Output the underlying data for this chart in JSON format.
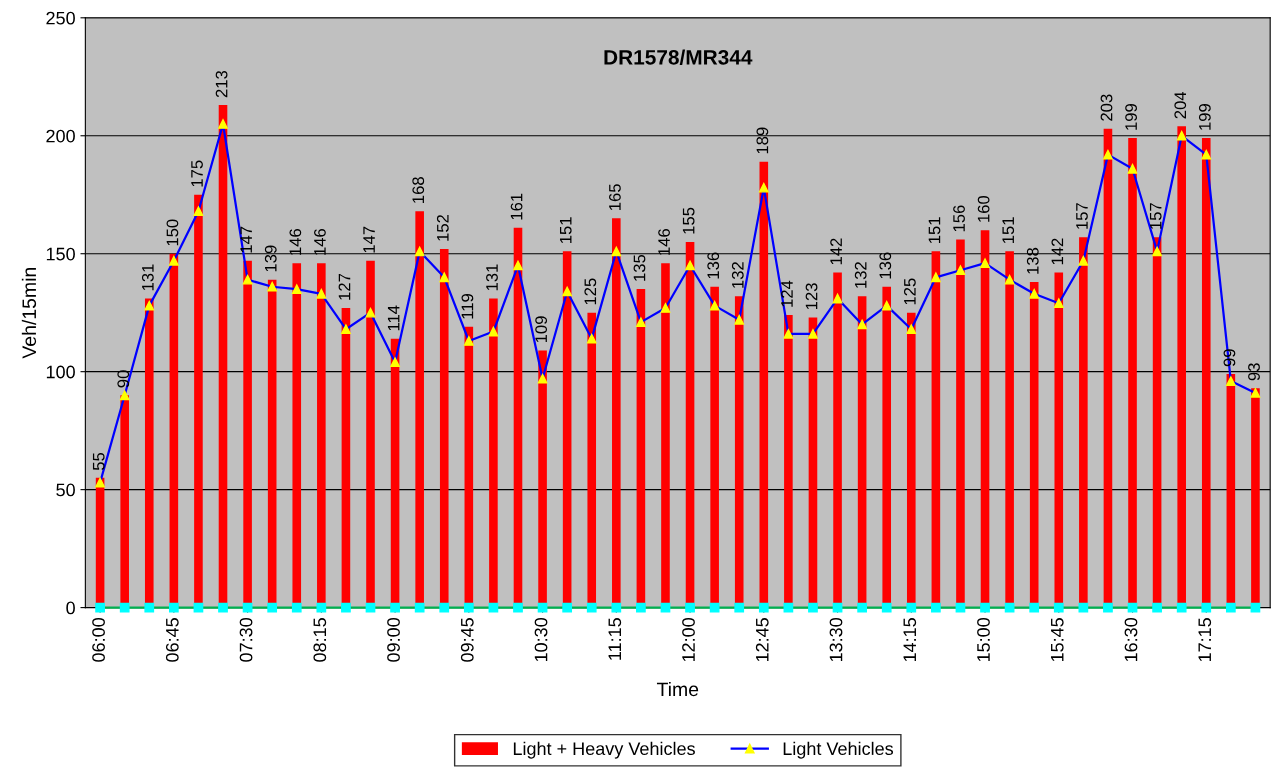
{
  "chart_data": {
    "type": "bar",
    "title": "DR1578/MR344",
    "xlabel": "Time",
    "ylabel": "Veh/15min",
    "categories": [
      "06:00",
      null,
      null,
      "06:45",
      null,
      null,
      "07:30",
      null,
      null,
      "08:15",
      null,
      null,
      "09:00",
      null,
      null,
      "09:45",
      null,
      null,
      "10:30",
      null,
      null,
      "11:15",
      null,
      null,
      "12:00",
      null,
      null,
      "12:45",
      null,
      null,
      "13:30",
      null,
      null,
      "14:15",
      null,
      null,
      "15:00",
      null,
      null,
      "15:45",
      null,
      null,
      "16:30",
      null,
      null,
      "17:15",
      null,
      null
    ],
    "series": [
      {
        "name": "Light + Heavy Vehicles",
        "color": "#ff0000",
        "values": [
          55,
          90,
          131,
          150,
          175,
          213,
          147,
          139,
          146,
          146,
          127,
          147,
          114,
          168,
          152,
          119,
          131,
          161,
          109,
          151,
          125,
          165,
          135,
          146,
          155,
          136,
          132,
          189,
          124,
          123,
          142,
          132,
          136,
          125,
          151,
          156,
          160,
          151,
          138,
          142,
          157,
          203,
          199,
          157,
          204,
          199,
          99,
          93
        ],
        "value_labels": [
          "55",
          "90",
          "131",
          "150",
          "175",
          "213",
          "147",
          "139",
          "146",
          "146",
          "127",
          "147",
          "114",
          "168",
          "152",
          "119",
          "131",
          "161",
          "109",
          "151",
          "125",
          "165",
          "135",
          "146",
          "155",
          "136",
          "132",
          "189",
          "124",
          "123",
          "142",
          "132",
          "136",
          "125",
          "151",
          "156",
          "160",
          "151",
          "138",
          "142",
          "157",
          "203",
          "199",
          "157",
          "204",
          "199",
          "99",
          "93"
        ]
      },
      {
        "name": "Light Vehicles",
        "type": "line",
        "color": "#0000ff",
        "marker": "triangle",
        "values": [
          53,
          90,
          128,
          147,
          168,
          205,
          139,
          136,
          135,
          133,
          118,
          125,
          104,
          151,
          140,
          113,
          117,
          145,
          97,
          134,
          114,
          151,
          121,
          127,
          145,
          128,
          122,
          178,
          116,
          116,
          131,
          120,
          128,
          118,
          140,
          143,
          146,
          139,
          133,
          129,
          147,
          192,
          186,
          151,
          200,
          192,
          96,
          91
        ]
      },
      {
        "type": "line",
        "color": "#00b050",
        "marker": "square",
        "values": [
          0,
          0,
          0,
          0,
          0,
          0,
          0,
          0,
          0,
          0,
          0,
          0,
          0,
          0,
          0,
          0,
          0,
          0,
          0,
          0,
          0,
          0,
          0,
          0,
          0,
          0,
          0,
          0,
          0,
          0,
          0,
          0,
          0,
          0,
          0,
          0,
          0,
          0,
          0,
          0,
          0,
          0,
          0,
          0,
          0,
          0,
          0,
          0
        ]
      }
    ],
    "ylim": [
      0,
      250
    ],
    "yticks": [
      0,
      50,
      100,
      150,
      200,
      250
    ],
    "grid": "y",
    "legend": "bottom"
  }
}
